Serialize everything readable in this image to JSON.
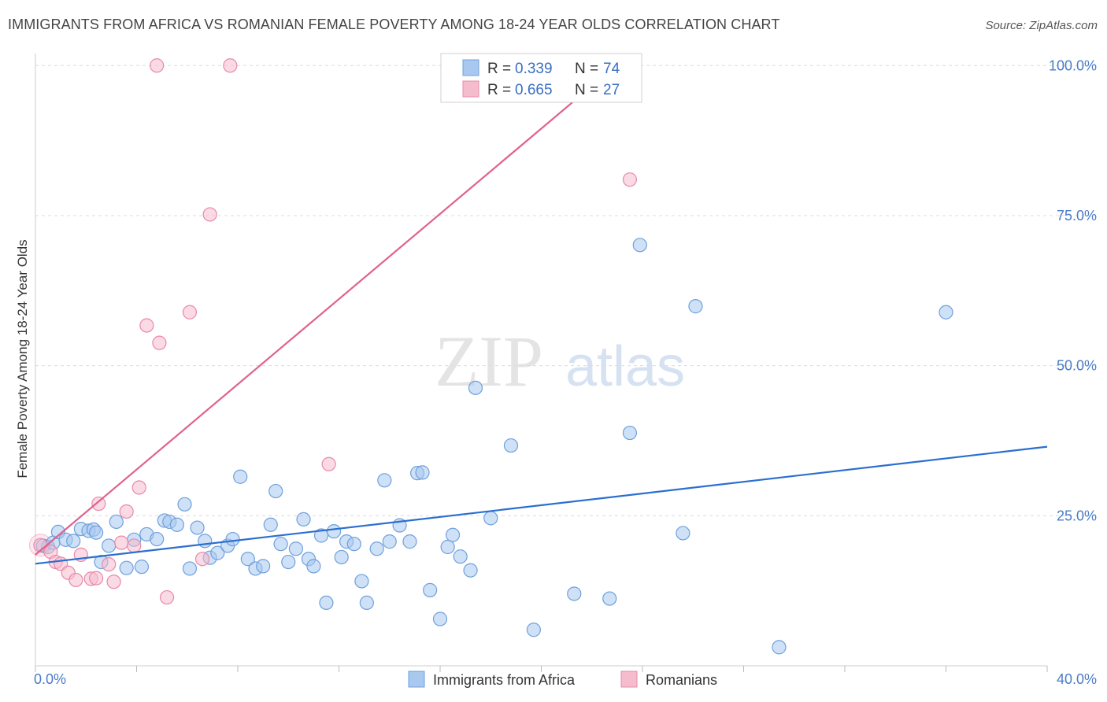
{
  "title": "IMMIGRANTS FROM AFRICA VS ROMANIAN FEMALE POVERTY AMONG 18-24 YEAR OLDS CORRELATION CHART",
  "source": "Source: ZipAtlas.com",
  "watermark": {
    "zip": "ZIP",
    "atlas": "atlas"
  },
  "legend": {
    "r_label": "R =",
    "n_label": "N =",
    "entries": [
      {
        "r": "0.339",
        "n": "74"
      },
      {
        "r": "0.665",
        "n": "27"
      }
    ]
  },
  "colors": {
    "blue_fill": "#a8c8f0",
    "blue_stroke": "#6fa0dc",
    "blue_line": "#2a6fd0",
    "pink_fill": "#f5bccd",
    "pink_stroke": "#e88aa8",
    "pink_line": "#e0628c",
    "tick_text": "#4a7cc7",
    "grid": "#dcdcdc"
  },
  "chart_data": {
    "type": "scatter",
    "xlabel": "",
    "ylabel": "Female Poverty Among 18-24 Year Olds",
    "xlim": [
      0,
      40
    ],
    "ylim": [
      0,
      102
    ],
    "x_tick_labels": [
      "0.0%",
      "40.0%"
    ],
    "y_ticks": [
      25,
      50,
      75,
      100
    ],
    "y_tick_labels": [
      "25.0%",
      "50.0%",
      "75.0%",
      "100.0%"
    ],
    "grid": true,
    "legend_position": "top-center",
    "series": [
      {
        "name": "Immigrants from Africa",
        "trend": {
          "x": [
            0,
            40
          ],
          "y": [
            17.0,
            36.5
          ]
        },
        "points": [
          [
            0.3,
            20.0
          ],
          [
            0.5,
            19.8
          ],
          [
            0.7,
            20.5
          ],
          [
            0.9,
            22.3
          ],
          [
            1.2,
            21.0
          ],
          [
            1.5,
            20.8
          ],
          [
            1.8,
            22.8
          ],
          [
            2.1,
            22.5
          ],
          [
            2.3,
            22.7
          ],
          [
            2.4,
            22.2
          ],
          [
            2.6,
            17.3
          ],
          [
            2.9,
            20.0
          ],
          [
            3.2,
            24.0
          ],
          [
            3.6,
            16.3
          ],
          [
            3.9,
            21.0
          ],
          [
            4.2,
            16.5
          ],
          [
            4.4,
            21.9
          ],
          [
            4.8,
            21.1
          ],
          [
            5.1,
            24.2
          ],
          [
            5.3,
            24.0
          ],
          [
            5.6,
            23.5
          ],
          [
            5.9,
            26.9
          ],
          [
            6.1,
            16.2
          ],
          [
            6.4,
            23.0
          ],
          [
            6.7,
            20.8
          ],
          [
            6.9,
            18.0
          ],
          [
            7.2,
            18.8
          ],
          [
            7.6,
            20.0
          ],
          [
            7.8,
            21.1
          ],
          [
            8.1,
            31.5
          ],
          [
            8.4,
            17.8
          ],
          [
            8.7,
            16.2
          ],
          [
            9.0,
            16.6
          ],
          [
            9.3,
            23.5
          ],
          [
            9.5,
            29.1
          ],
          [
            9.7,
            20.3
          ],
          [
            10.0,
            17.3
          ],
          [
            10.3,
            19.5
          ],
          [
            10.6,
            24.4
          ],
          [
            10.8,
            17.8
          ],
          [
            11.0,
            16.6
          ],
          [
            11.3,
            21.7
          ],
          [
            11.5,
            10.5
          ],
          [
            11.8,
            22.4
          ],
          [
            12.1,
            18.1
          ],
          [
            12.3,
            20.7
          ],
          [
            12.6,
            20.3
          ],
          [
            12.9,
            14.1
          ],
          [
            13.1,
            10.5
          ],
          [
            13.5,
            19.5
          ],
          [
            13.8,
            30.9
          ],
          [
            14.0,
            20.7
          ],
          [
            14.4,
            23.4
          ],
          [
            14.8,
            20.7
          ],
          [
            15.1,
            32.1
          ],
          [
            15.3,
            32.2
          ],
          [
            15.6,
            12.6
          ],
          [
            16.0,
            7.8
          ],
          [
            16.3,
            19.8
          ],
          [
            16.5,
            21.8
          ],
          [
            16.8,
            18.2
          ],
          [
            17.2,
            15.9
          ],
          [
            17.4,
            46.3
          ],
          [
            18.0,
            24.6
          ],
          [
            18.8,
            36.7
          ],
          [
            19.7,
            6.0
          ],
          [
            21.3,
            12.0
          ],
          [
            22.7,
            11.2
          ],
          [
            23.5,
            38.8
          ],
          [
            23.9,
            70.1
          ],
          [
            25.6,
            22.1
          ],
          [
            26.1,
            59.9
          ],
          [
            29.4,
            3.1
          ],
          [
            36.0,
            58.9
          ]
        ]
      },
      {
        "name": "Romanians",
        "trend": {
          "x": [
            0,
            23.1
          ],
          "y": [
            18.5,
            100.5
          ]
        },
        "points": [
          [
            0.2,
            20.1
          ],
          [
            0.6,
            19.0
          ],
          [
            0.8,
            17.3
          ],
          [
            1.0,
            17.0
          ],
          [
            1.3,
            15.5
          ],
          [
            1.6,
            14.3
          ],
          [
            1.8,
            18.5
          ],
          [
            2.2,
            14.5
          ],
          [
            2.4,
            14.6
          ],
          [
            2.5,
            27.0
          ],
          [
            2.9,
            16.9
          ],
          [
            3.1,
            14.0
          ],
          [
            3.4,
            20.5
          ],
          [
            3.6,
            25.7
          ],
          [
            3.9,
            20.0
          ],
          [
            4.1,
            29.7
          ],
          [
            4.4,
            56.7
          ],
          [
            4.8,
            100.0
          ],
          [
            4.9,
            53.8
          ],
          [
            5.2,
            11.4
          ],
          [
            6.1,
            58.9
          ],
          [
            6.6,
            17.8
          ],
          [
            6.9,
            75.2
          ],
          [
            7.7,
            100.0
          ],
          [
            11.6,
            33.6
          ],
          [
            22.7,
            100.0
          ],
          [
            23.5,
            81.0
          ]
        ]
      }
    ]
  }
}
